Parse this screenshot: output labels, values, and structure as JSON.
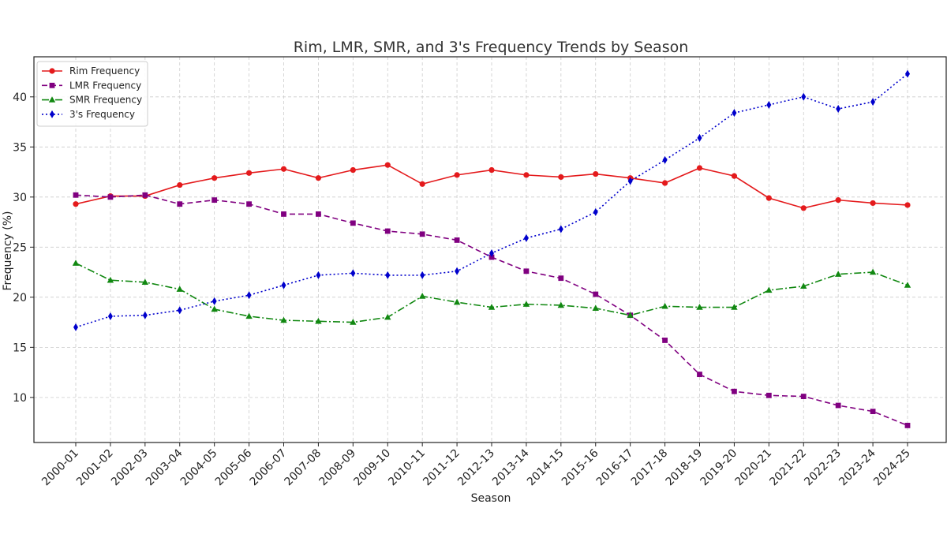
{
  "chart_data": {
    "type": "line",
    "title": "Rim, LMR, SMR, and 3's Frequency Trends by Season",
    "xlabel": "Season",
    "ylabel": "Frequency (%)",
    "ylim": [
      5.5,
      44
    ],
    "yticks": [
      10,
      15,
      20,
      25,
      30,
      35,
      40
    ],
    "grid": true,
    "legend_position": "top-left",
    "categories": [
      "2000-01",
      "2001-02",
      "2002-03",
      "2003-04",
      "2004-05",
      "2005-06",
      "2006-07",
      "2007-08",
      "2008-09",
      "2009-10",
      "2010-11",
      "2011-12",
      "2012-13",
      "2013-14",
      "2014-15",
      "2015-16",
      "2016-17",
      "2017-18",
      "2018-19",
      "2019-20",
      "2020-21",
      "2021-22",
      "2022-23",
      "2023-24",
      "2024-25"
    ],
    "series": [
      {
        "name": "Rim Frequency",
        "color": "#e41a1c",
        "dash": "solid",
        "marker": "circle",
        "values": [
          29.3,
          30.1,
          30.1,
          31.2,
          31.9,
          32.4,
          32.8,
          31.9,
          32.7,
          33.2,
          31.3,
          32.2,
          32.7,
          32.2,
          32.0,
          32.3,
          31.9,
          31.4,
          32.9,
          32.1,
          29.9,
          28.9,
          29.7,
          29.4,
          29.2
        ]
      },
      {
        "name": "LMR Frequency",
        "color": "#800080",
        "dash": "dashed",
        "marker": "square",
        "values": [
          30.2,
          30.0,
          30.2,
          29.3,
          29.7,
          29.3,
          28.3,
          28.3,
          27.4,
          26.6,
          26.3,
          25.7,
          24.0,
          22.6,
          21.9,
          20.3,
          18.2,
          15.7,
          12.3,
          10.6,
          10.2,
          10.1,
          9.2,
          8.6,
          7.2
        ]
      },
      {
        "name": "SMR Frequency",
        "color": "#118811",
        "dash": "dashdot",
        "marker": "triangle",
        "values": [
          23.4,
          21.7,
          21.5,
          20.8,
          18.8,
          18.1,
          17.7,
          17.6,
          17.5,
          18.0,
          20.1,
          19.5,
          19.0,
          19.3,
          19.2,
          18.9,
          18.2,
          19.1,
          19.0,
          19.0,
          20.7,
          21.1,
          22.3,
          22.5,
          21.2
        ]
      },
      {
        "name": "3's Frequency",
        "color": "#0000cc",
        "dash": "dotted",
        "marker": "diamond",
        "values": [
          17.0,
          18.1,
          18.2,
          18.7,
          19.6,
          20.2,
          21.2,
          22.2,
          22.4,
          22.2,
          22.2,
          22.6,
          24.4,
          25.9,
          26.8,
          28.5,
          31.6,
          33.7,
          35.9,
          38.4,
          39.2,
          40.0,
          38.8,
          39.5,
          42.3
        ]
      }
    ]
  }
}
